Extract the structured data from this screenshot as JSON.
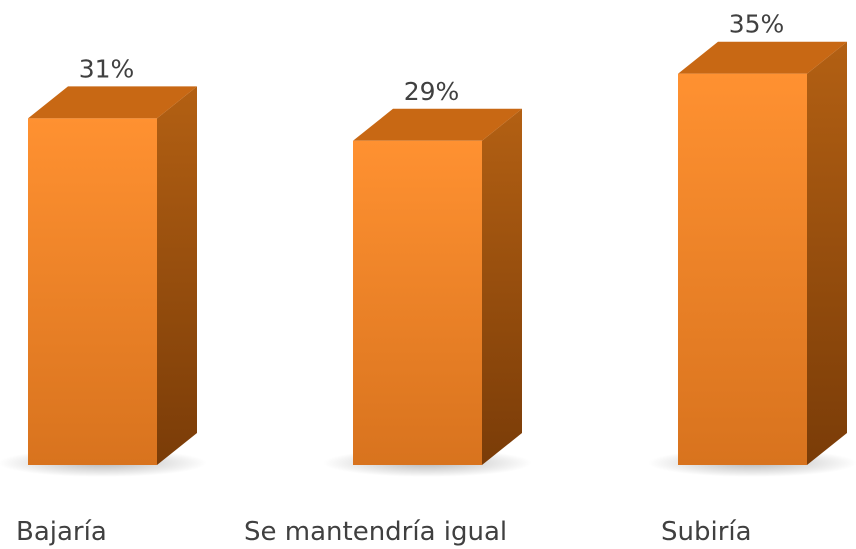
{
  "chart_data": {
    "type": "bar",
    "style": "3d-column",
    "categories": [
      "Bajaría",
      "Se mantendría igual",
      "Subiría"
    ],
    "values": [
      31,
      29,
      35
    ],
    "value_suffix": "%",
    "data_labels": [
      "31%",
      "29%",
      "35%"
    ],
    "title": "",
    "xlabel": "",
    "ylabel": "",
    "grid": false,
    "legend": "none",
    "colors": {
      "front_top": "#FF9131",
      "front_bottom": "#D8731E",
      "top_face": "#C86814",
      "side_light": "#B36013",
      "side_dark": "#7A3C08",
      "text": "#404040"
    }
  }
}
